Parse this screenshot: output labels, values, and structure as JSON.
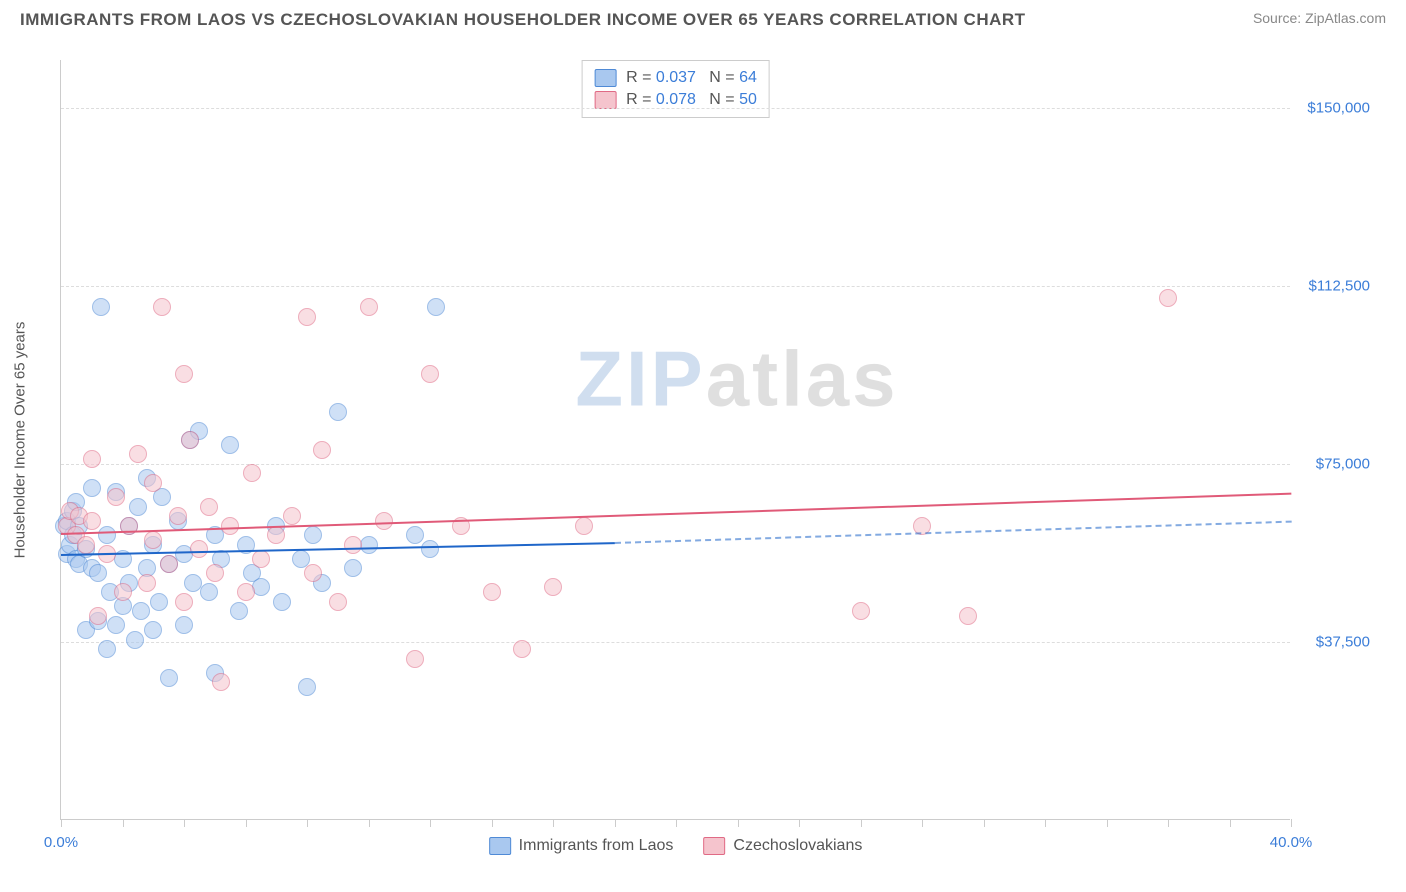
{
  "title": "IMMIGRANTS FROM LAOS VS CZECHOSLOVAKIAN HOUSEHOLDER INCOME OVER 65 YEARS CORRELATION CHART",
  "source_label": "Source: ",
  "source_name": "ZipAtlas.com",
  "ylabel": "Householder Income Over 65 years",
  "watermark_a": "ZIP",
  "watermark_b": "atlas",
  "chart": {
    "type": "scatter",
    "xlim": [
      0,
      40
    ],
    "ylim": [
      0,
      160000
    ],
    "y_ticks": [
      {
        "v": 37500,
        "label": "$37,500"
      },
      {
        "v": 75000,
        "label": "$75,000"
      },
      {
        "v": 112500,
        "label": "$112,500"
      },
      {
        "v": 150000,
        "label": "$150,000"
      }
    ],
    "x_tick_labels": {
      "min": "0.0%",
      "max": "40.0%"
    },
    "x_tick_positions": [
      0,
      2,
      4,
      6,
      8,
      10,
      12,
      14,
      16,
      18,
      20,
      22,
      24,
      26,
      28,
      30,
      32,
      34,
      36,
      38,
      40
    ],
    "background_color": "#ffffff",
    "grid_color": "#dddddd",
    "axis_color": "#cccccc",
    "tick_label_color": "#3b7dd8",
    "point_radius": 9,
    "point_opacity": 0.55,
    "point_border_width": 1.2,
    "series": [
      {
        "key": "laos",
        "name": "Immigrants from Laos",
        "fill": "#a9c8ef",
        "stroke": "#4f8ad6",
        "trend_color": "#1f66c9",
        "R": "0.037",
        "N": "64",
        "trend": {
          "x1": 0,
          "y1": 56000,
          "x2": 18,
          "y2": 58500,
          "dash_to_x": 40,
          "dash_to_y": 63000
        },
        "points": [
          [
            0.1,
            62000
          ],
          [
            0.2,
            63000
          ],
          [
            0.2,
            56000
          ],
          [
            0.3,
            58000
          ],
          [
            0.4,
            60000
          ],
          [
            0.4,
            65000
          ],
          [
            0.5,
            55000
          ],
          [
            0.5,
            67000
          ],
          [
            0.6,
            54000
          ],
          [
            0.6,
            62000
          ],
          [
            0.8,
            40000
          ],
          [
            0.8,
            57000
          ],
          [
            1.0,
            53000
          ],
          [
            1.0,
            70000
          ],
          [
            1.2,
            42000
          ],
          [
            1.2,
            52000
          ],
          [
            1.3,
            108000
          ],
          [
            1.5,
            36000
          ],
          [
            1.5,
            60000
          ],
          [
            1.6,
            48000
          ],
          [
            1.8,
            41000
          ],
          [
            1.8,
            69000
          ],
          [
            2.0,
            45000
          ],
          [
            2.0,
            55000
          ],
          [
            2.2,
            50000
          ],
          [
            2.2,
            62000
          ],
          [
            2.4,
            38000
          ],
          [
            2.5,
            66000
          ],
          [
            2.6,
            44000
          ],
          [
            2.8,
            53000
          ],
          [
            2.8,
            72000
          ],
          [
            3.0,
            40000
          ],
          [
            3.0,
            58000
          ],
          [
            3.2,
            46000
          ],
          [
            3.3,
            68000
          ],
          [
            3.5,
            30000
          ],
          [
            3.5,
            54000
          ],
          [
            3.8,
            63000
          ],
          [
            4.0,
            41000
          ],
          [
            4.0,
            56000
          ],
          [
            4.2,
            80000
          ],
          [
            4.3,
            50000
          ],
          [
            4.5,
            82000
          ],
          [
            4.8,
            48000
          ],
          [
            5.0,
            31000
          ],
          [
            5.0,
            60000
          ],
          [
            5.2,
            55000
          ],
          [
            5.5,
            79000
          ],
          [
            5.8,
            44000
          ],
          [
            6.0,
            58000
          ],
          [
            6.2,
            52000
          ],
          [
            6.5,
            49000
          ],
          [
            7.0,
            62000
          ],
          [
            7.2,
            46000
          ],
          [
            7.8,
            55000
          ],
          [
            8.0,
            28000
          ],
          [
            8.2,
            60000
          ],
          [
            8.5,
            50000
          ],
          [
            9.0,
            86000
          ],
          [
            9.5,
            53000
          ],
          [
            10.0,
            58000
          ],
          [
            11.5,
            60000
          ],
          [
            12.0,
            57000
          ],
          [
            12.2,
            108000
          ]
        ]
      },
      {
        "key": "czech",
        "name": "Czechoslovakians",
        "fill": "#f5c4cd",
        "stroke": "#e06a85",
        "trend_color": "#e05a78",
        "R": "0.078",
        "N": "50",
        "trend": {
          "x1": 0,
          "y1": 60500,
          "x2": 40,
          "y2": 69000
        },
        "points": [
          [
            0.2,
            62000
          ],
          [
            0.3,
            65000
          ],
          [
            0.5,
            60000
          ],
          [
            0.6,
            64000
          ],
          [
            0.8,
            58000
          ],
          [
            1.0,
            63000
          ],
          [
            1.0,
            76000
          ],
          [
            1.2,
            43000
          ],
          [
            1.5,
            56000
          ],
          [
            1.8,
            68000
          ],
          [
            2.0,
            48000
          ],
          [
            2.2,
            62000
          ],
          [
            2.5,
            77000
          ],
          [
            2.8,
            50000
          ],
          [
            3.0,
            59000
          ],
          [
            3.0,
            71000
          ],
          [
            3.3,
            108000
          ],
          [
            3.5,
            54000
          ],
          [
            3.8,
            64000
          ],
          [
            4.0,
            46000
          ],
          [
            4.0,
            94000
          ],
          [
            4.2,
            80000
          ],
          [
            4.5,
            57000
          ],
          [
            4.8,
            66000
          ],
          [
            5.0,
            52000
          ],
          [
            5.2,
            29000
          ],
          [
            5.5,
            62000
          ],
          [
            6.0,
            48000
          ],
          [
            6.2,
            73000
          ],
          [
            6.5,
            55000
          ],
          [
            7.0,
            60000
          ],
          [
            7.5,
            64000
          ],
          [
            8.0,
            106000
          ],
          [
            8.2,
            52000
          ],
          [
            8.5,
            78000
          ],
          [
            9.0,
            46000
          ],
          [
            9.5,
            58000
          ],
          [
            10.0,
            108000
          ],
          [
            10.5,
            63000
          ],
          [
            11.5,
            34000
          ],
          [
            12.0,
            94000
          ],
          [
            13.0,
            62000
          ],
          [
            14.0,
            48000
          ],
          [
            15.0,
            36000
          ],
          [
            16.0,
            49000
          ],
          [
            17.0,
            62000
          ],
          [
            26.0,
            44000
          ],
          [
            28.0,
            62000
          ],
          [
            29.5,
            43000
          ],
          [
            36.0,
            110000
          ]
        ]
      }
    ]
  },
  "legend_top": {
    "rows": [
      {
        "swatch_fill": "#a9c8ef",
        "swatch_stroke": "#4f8ad6",
        "text": "R = ",
        "val1": "0.037",
        "mid": "   N = ",
        "val2": "64"
      },
      {
        "swatch_fill": "#f5c4cd",
        "swatch_stroke": "#e06a85",
        "text": "R = ",
        "val1": "0.078",
        "mid": "   N = ",
        "val2": "50"
      }
    ]
  },
  "legend_bottom": [
    {
      "swatch_fill": "#a9c8ef",
      "swatch_stroke": "#4f8ad6",
      "label": "Immigrants from Laos"
    },
    {
      "swatch_fill": "#f5c4cd",
      "swatch_stroke": "#e06a85",
      "label": "Czechoslovakians"
    }
  ]
}
